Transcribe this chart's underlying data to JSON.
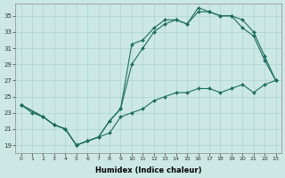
{
  "xlabel": "Humidex (Indice chaleur)",
  "bg_color": "#cce8e4",
  "grid_color": "#aad4ce",
  "line_color": "#1e6e5e",
  "xlim": [
    -0.5,
    23.5
  ],
  "ylim": [
    18,
    36.5
  ],
  "xticks": [
    0,
    1,
    2,
    3,
    4,
    5,
    6,
    7,
    8,
    9,
    10,
    11,
    12,
    13,
    14,
    15,
    16,
    17,
    18,
    19,
    20,
    21,
    22,
    23
  ],
  "yticks": [
    19,
    21,
    23,
    25,
    27,
    29,
    31,
    33,
    35
  ],
  "line1_x": [
    0,
    1,
    2,
    3,
    4,
    5,
    6,
    7,
    8,
    9,
    10,
    11,
    12,
    13,
    14,
    15,
    16,
    17,
    18,
    19,
    20,
    21,
    22,
    23
  ],
  "line1_y": [
    24.0,
    23.0,
    22.5,
    21.5,
    21.0,
    19.0,
    19.5,
    20.0,
    20.5,
    22.5,
    23.0,
    23.5,
    24.5,
    25.0,
    25.5,
    25.5,
    26.0,
    26.0,
    25.5,
    26.0,
    26.5,
    25.5,
    26.5,
    27.0
  ],
  "line2_x": [
    0,
    2,
    3,
    4,
    5,
    6,
    7,
    8,
    9,
    10,
    11,
    12,
    13,
    14,
    15,
    16,
    17,
    18,
    19,
    20,
    21,
    22,
    23
  ],
  "line2_y": [
    24.0,
    22.5,
    21.5,
    21.0,
    19.0,
    19.5,
    20.0,
    22.0,
    23.5,
    29.0,
    31.0,
    33.0,
    34.0,
    34.5,
    34.0,
    35.5,
    35.5,
    35.0,
    35.0,
    34.5,
    33.0,
    30.0,
    27.0
  ],
  "line3_x": [
    0,
    2,
    3,
    4,
    5,
    6,
    7,
    8,
    9,
    10,
    11,
    12,
    13,
    14,
    15,
    16,
    17,
    18,
    19,
    20,
    21,
    22,
    23
  ],
  "line3_y": [
    24.0,
    22.5,
    21.5,
    21.0,
    19.0,
    19.5,
    20.0,
    22.0,
    23.5,
    31.5,
    32.0,
    33.5,
    34.5,
    34.5,
    34.0,
    36.0,
    35.5,
    35.0,
    35.0,
    33.5,
    32.5,
    29.5,
    27.0
  ]
}
